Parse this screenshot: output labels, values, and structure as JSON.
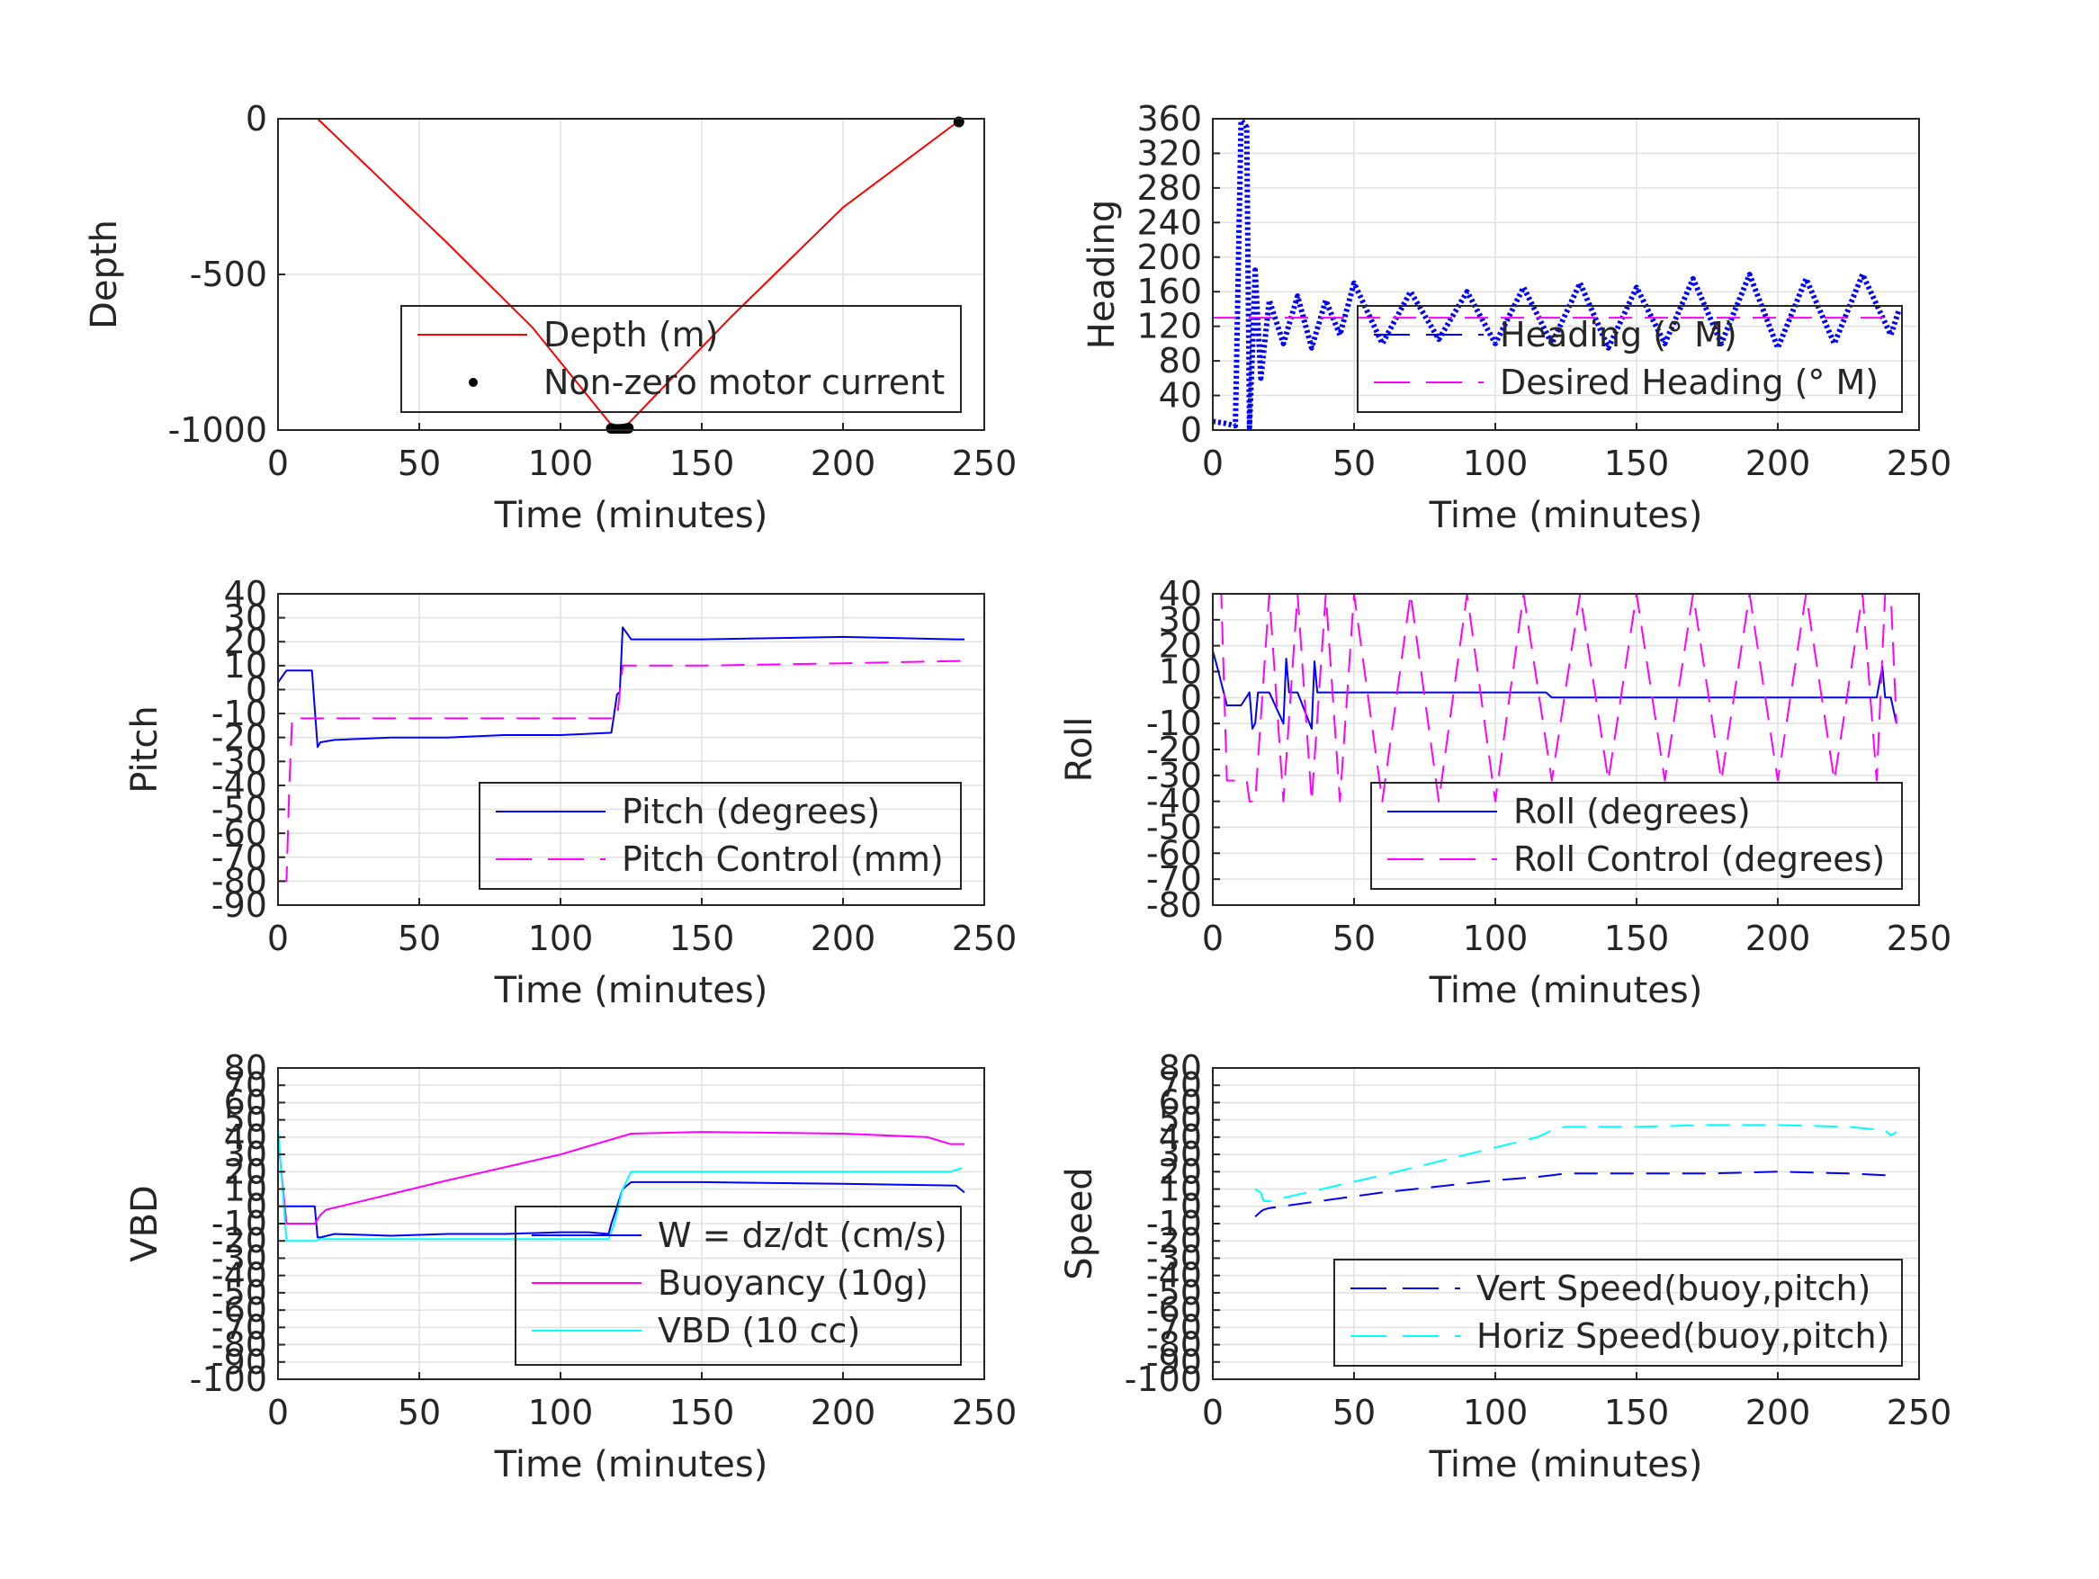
{
  "colors": {
    "grid": "#e0e0e0",
    "axis": "#262626",
    "red": "#ff0000",
    "blue": "#0000ff",
    "magenta": "#ff00ff",
    "cyan": "#00ffff",
    "black": "#000000"
  },
  "chart_data": [
    {
      "id": "depth",
      "type": "line",
      "xlabel": "Time (minutes)",
      "ylabel": "Depth",
      "xlim": [
        0,
        250
      ],
      "ylim": [
        -1000,
        0
      ],
      "xticks": [
        0,
        50,
        100,
        150,
        200,
        250
      ],
      "yticks": [
        -1000,
        -500,
        0
      ],
      "ytick_labels": [
        "-1000",
        "-500",
        "0"
      ],
      "legend_position": "bottom-right",
      "grid": true,
      "series": [
        {
          "name": "Depth (m)",
          "style": "solid",
          "color": "#ff0000",
          "x": [
            0,
            14,
            60,
            90,
            119,
            122,
            125,
            160,
            200,
            242
          ],
          "y": [
            0,
            0,
            -400,
            -670,
            -995,
            -995,
            -970,
            -640,
            -285,
            0
          ]
        },
        {
          "name": "Non-zero motor current",
          "style": "points",
          "color": "#000000",
          "x": [
            118,
            119,
            120,
            121,
            122,
            123,
            124,
            241
          ],
          "y": [
            -995,
            -998,
            -998,
            -998,
            -997,
            -996,
            -994,
            -10
          ]
        }
      ]
    },
    {
      "id": "heading",
      "type": "line",
      "xlabel": "Time (minutes)",
      "ylabel": "Heading",
      "xlim": [
        0,
        250
      ],
      "ylim": [
        0,
        360
      ],
      "xticks": [
        0,
        50,
        100,
        150,
        200,
        250
      ],
      "yticks": [
        0,
        40,
        80,
        120,
        160,
        200,
        240,
        280,
        320,
        360
      ],
      "ytick_labels": [
        "0",
        "40",
        "80",
        "120",
        "160",
        "200",
        "240",
        "280",
        "320",
        "360"
      ],
      "legend_position": "bottom-right",
      "grid": true,
      "series": [
        {
          "name": "Heading (° M)",
          "style": "dotted-dense",
          "color": "#0000ff",
          "x": [
            0,
            4,
            8,
            10,
            11,
            12,
            13,
            14,
            15,
            17,
            20,
            25,
            30,
            35,
            40,
            45,
            50,
            60,
            70,
            80,
            90,
            100,
            110,
            120,
            130,
            140,
            150,
            160,
            170,
            180,
            190,
            200,
            210,
            220,
            230,
            240,
            243
          ],
          "y": [
            10,
            8,
            5,
            358,
            355,
            350,
            3,
            90,
            185,
            60,
            150,
            100,
            155,
            95,
            150,
            110,
            170,
            100,
            160,
            105,
            160,
            100,
            165,
            100,
            170,
            95,
            165,
            100,
            175,
            100,
            180,
            95,
            175,
            100,
            180,
            110,
            140
          ]
        },
        {
          "name": "Desired Heading (° M)",
          "style": "dashed",
          "color": "#ff00ff",
          "x": [
            0,
            242
          ],
          "y": [
            130,
            130
          ]
        }
      ]
    },
    {
      "id": "pitch",
      "type": "line",
      "xlabel": "Time (minutes)",
      "ylabel": "Pitch",
      "xlim": [
        0,
        250
      ],
      "ylim": [
        -90,
        40
      ],
      "xticks": [
        0,
        50,
        100,
        150,
        200,
        250
      ],
      "yticks": [
        -90,
        -80,
        -70,
        -60,
        -50,
        -40,
        -30,
        -20,
        -10,
        0,
        10,
        20,
        30,
        40
      ],
      "ytick_labels": [
        "-90",
        "-80",
        "-70",
        "-60",
        "-50",
        "-40",
        "-30",
        "-20",
        "-10",
        "0",
        "10",
        "20",
        "30",
        "40"
      ],
      "legend_position": "bottom-right",
      "grid": true,
      "series": [
        {
          "name": "Pitch (degrees)",
          "style": "solid",
          "color": "#0000ff",
          "x": [
            0,
            3,
            5,
            12,
            14,
            15,
            20,
            40,
            60,
            80,
            100,
            118,
            119,
            120,
            121,
            122,
            125,
            150,
            200,
            240,
            243
          ],
          "y": [
            3,
            8,
            8,
            8,
            -24,
            -22,
            -21,
            -20,
            -20,
            -19,
            -19,
            -18,
            -10,
            -2,
            -1,
            26,
            21,
            21,
            22,
            21,
            21
          ]
        },
        {
          "name": "Pitch Control (mm)",
          "style": "dashed",
          "color": "#ff00ff",
          "x": [
            0,
            3,
            4,
            5,
            10,
            60,
            118,
            120,
            122,
            150,
            200,
            243
          ],
          "y": [
            -80,
            -80,
            -40,
            -12,
            -12,
            -12,
            -12,
            -12,
            10,
            10,
            11,
            12
          ]
        }
      ]
    },
    {
      "id": "roll",
      "type": "line",
      "xlabel": "Time (minutes)",
      "ylabel": "Roll",
      "xlim": [
        0,
        250
      ],
      "ylim": [
        -80,
        40
      ],
      "xticks": [
        0,
        50,
        100,
        150,
        200,
        250
      ],
      "yticks": [
        -80,
        -70,
        -60,
        -50,
        -40,
        -30,
        -20,
        -10,
        0,
        10,
        20,
        30,
        40
      ],
      "ytick_labels": [
        "-80",
        "-70",
        "-60",
        "-50",
        "-40",
        "-30",
        "-20",
        "-10",
        "0",
        "10",
        "20",
        "30",
        "40"
      ],
      "legend_position": "bottom-right",
      "grid": true,
      "series": [
        {
          "name": "Roll (degrees)",
          "style": "solid",
          "color": "#0000ff",
          "x": [
            0,
            2,
            5,
            10,
            13,
            14,
            15,
            16,
            20,
            25,
            26,
            27,
            30,
            35,
            36,
            37,
            40,
            50,
            60,
            70,
            80,
            90,
            100,
            110,
            118,
            120,
            130,
            150,
            170,
            190,
            210,
            230,
            235,
            237,
            238,
            240,
            242
          ],
          "y": [
            18,
            10,
            -3,
            -3,
            2,
            -12,
            -10,
            2,
            2,
            -10,
            15,
            2,
            2,
            -12,
            14,
            2,
            2,
            2,
            2,
            2,
            2,
            2,
            2,
            2,
            2,
            0,
            0,
            0,
            0,
            0,
            0,
            0,
            0,
            12,
            0,
            0,
            -10
          ]
        },
        {
          "name": "Roll Control (degrees)",
          "style": "dashed",
          "color": "#ff00ff",
          "x": [
            0,
            3,
            5,
            10,
            12,
            13,
            15,
            20,
            25,
            30,
            35,
            40,
            45,
            50,
            60,
            70,
            80,
            90,
            100,
            110,
            120,
            130,
            140,
            150,
            160,
            170,
            180,
            190,
            200,
            210,
            220,
            230,
            235,
            238,
            240,
            242
          ],
          "y": [
            40,
            40,
            -32,
            -32,
            -32,
            -40,
            -40,
            40,
            -40,
            40,
            -40,
            40,
            -40,
            40,
            -40,
            40,
            -40,
            40,
            -40,
            40,
            -32,
            40,
            -32,
            40,
            -32,
            40,
            -32,
            40,
            -32,
            40,
            -32,
            40,
            -32,
            40,
            40,
            -10
          ]
        }
      ]
    },
    {
      "id": "vbd",
      "type": "line",
      "xlabel": "Time (minutes)",
      "ylabel": "VBD",
      "xlim": [
        0,
        250
      ],
      "ylim": [
        -100,
        80
      ],
      "xticks": [
        0,
        50,
        100,
        150,
        200,
        250
      ],
      "yticks": [
        -100,
        -90,
        -80,
        -70,
        -60,
        -50,
        -40,
        -30,
        -20,
        -10,
        0,
        10,
        20,
        30,
        40,
        50,
        60,
        70,
        80
      ],
      "ytick_labels": [
        "-100",
        "-90",
        "-80",
        "-70",
        "-60",
        "-50",
        "-40",
        "-30",
        "-20",
        "-10",
        "0",
        "10",
        "20",
        "30",
        "40",
        "50",
        "60",
        "70",
        "80"
      ],
      "legend_position": "bottom-right",
      "grid": true,
      "series": [
        {
          "name": "W = dz/dt (cm/s)",
          "style": "solid",
          "color": "#0000ff",
          "x": [
            0,
            2,
            5,
            13,
            14,
            15,
            20,
            40,
            60,
            80,
            100,
            110,
            117,
            118,
            119,
            120,
            122,
            125,
            150,
            200,
            240,
            243
          ],
          "y": [
            0,
            0,
            0,
            0,
            -18,
            -18,
            -16,
            -17,
            -16,
            -16,
            -15,
            -15,
            -16,
            -10,
            -5,
            0,
            10,
            14,
            14,
            13,
            12,
            8
          ]
        },
        {
          "name": "Buoyancy (10g)",
          "style": "solid",
          "color": "#ff00ff",
          "x": [
            0,
            3,
            13,
            15,
            17,
            60,
            100,
            125,
            150,
            200,
            230,
            238,
            240,
            243
          ],
          "y": [
            40,
            -10,
            -10,
            -5,
            -2,
            15,
            30,
            42,
            43,
            42,
            40,
            36,
            36,
            36
          ]
        },
        {
          "name": "VBD (10 cc)",
          "style": "solid",
          "color": "#00ffff",
          "x": [
            0,
            3,
            5,
            13,
            15,
            20,
            60,
            100,
            117,
            119,
            122,
            125,
            150,
            200,
            238,
            242
          ],
          "y": [
            45,
            -20,
            -20,
            -20,
            -19,
            -19,
            -19,
            -19,
            -19,
            -10,
            10,
            20,
            20,
            20,
            20,
            22
          ]
        }
      ]
    },
    {
      "id": "speed",
      "type": "line",
      "xlabel": "Time (minutes)",
      "ylabel": "Speed",
      "xlim": [
        0,
        250
      ],
      "ylim": [
        -100,
        80
      ],
      "xticks": [
        0,
        50,
        100,
        150,
        200,
        250
      ],
      "yticks": [
        -100,
        -90,
        -80,
        -70,
        -60,
        -50,
        -40,
        -30,
        -20,
        -10,
        0,
        10,
        20,
        30,
        40,
        50,
        60,
        70,
        80
      ],
      "ytick_labels": [
        "-100",
        "-90",
        "-80",
        "-70",
        "-60",
        "-50",
        "-40",
        "-30",
        "-20",
        "-10",
        "0",
        "10",
        "20",
        "30",
        "40",
        "50",
        "60",
        "70",
        "80"
      ],
      "legend_position": "bottom-right",
      "grid": true,
      "series": [
        {
          "name": "Vert Speed(buoy,pitch)",
          "style": "dashed",
          "color": "#0000ff",
          "x": [
            15,
            17,
            18,
            20,
            60,
            100,
            115,
            120,
            125,
            150,
            175,
            200,
            225,
            238,
            242
          ],
          "y": [
            -6,
            -3,
            -2,
            -1,
            8,
            15,
            17,
            18,
            19,
            19,
            19,
            20,
            19,
            18,
            18
          ]
        },
        {
          "name": "Horiz Speed(buoy,pitch)",
          "style": "dashed",
          "color": "#00ffff",
          "x": [
            15,
            17,
            18,
            20,
            60,
            100,
            115,
            120,
            125,
            150,
            175,
            200,
            225,
            238,
            240,
            242
          ],
          "y": [
            10,
            8,
            3,
            3,
            18,
            34,
            40,
            44,
            46,
            46,
            47,
            47,
            46,
            44,
            41,
            43
          ]
        }
      ]
    }
  ]
}
